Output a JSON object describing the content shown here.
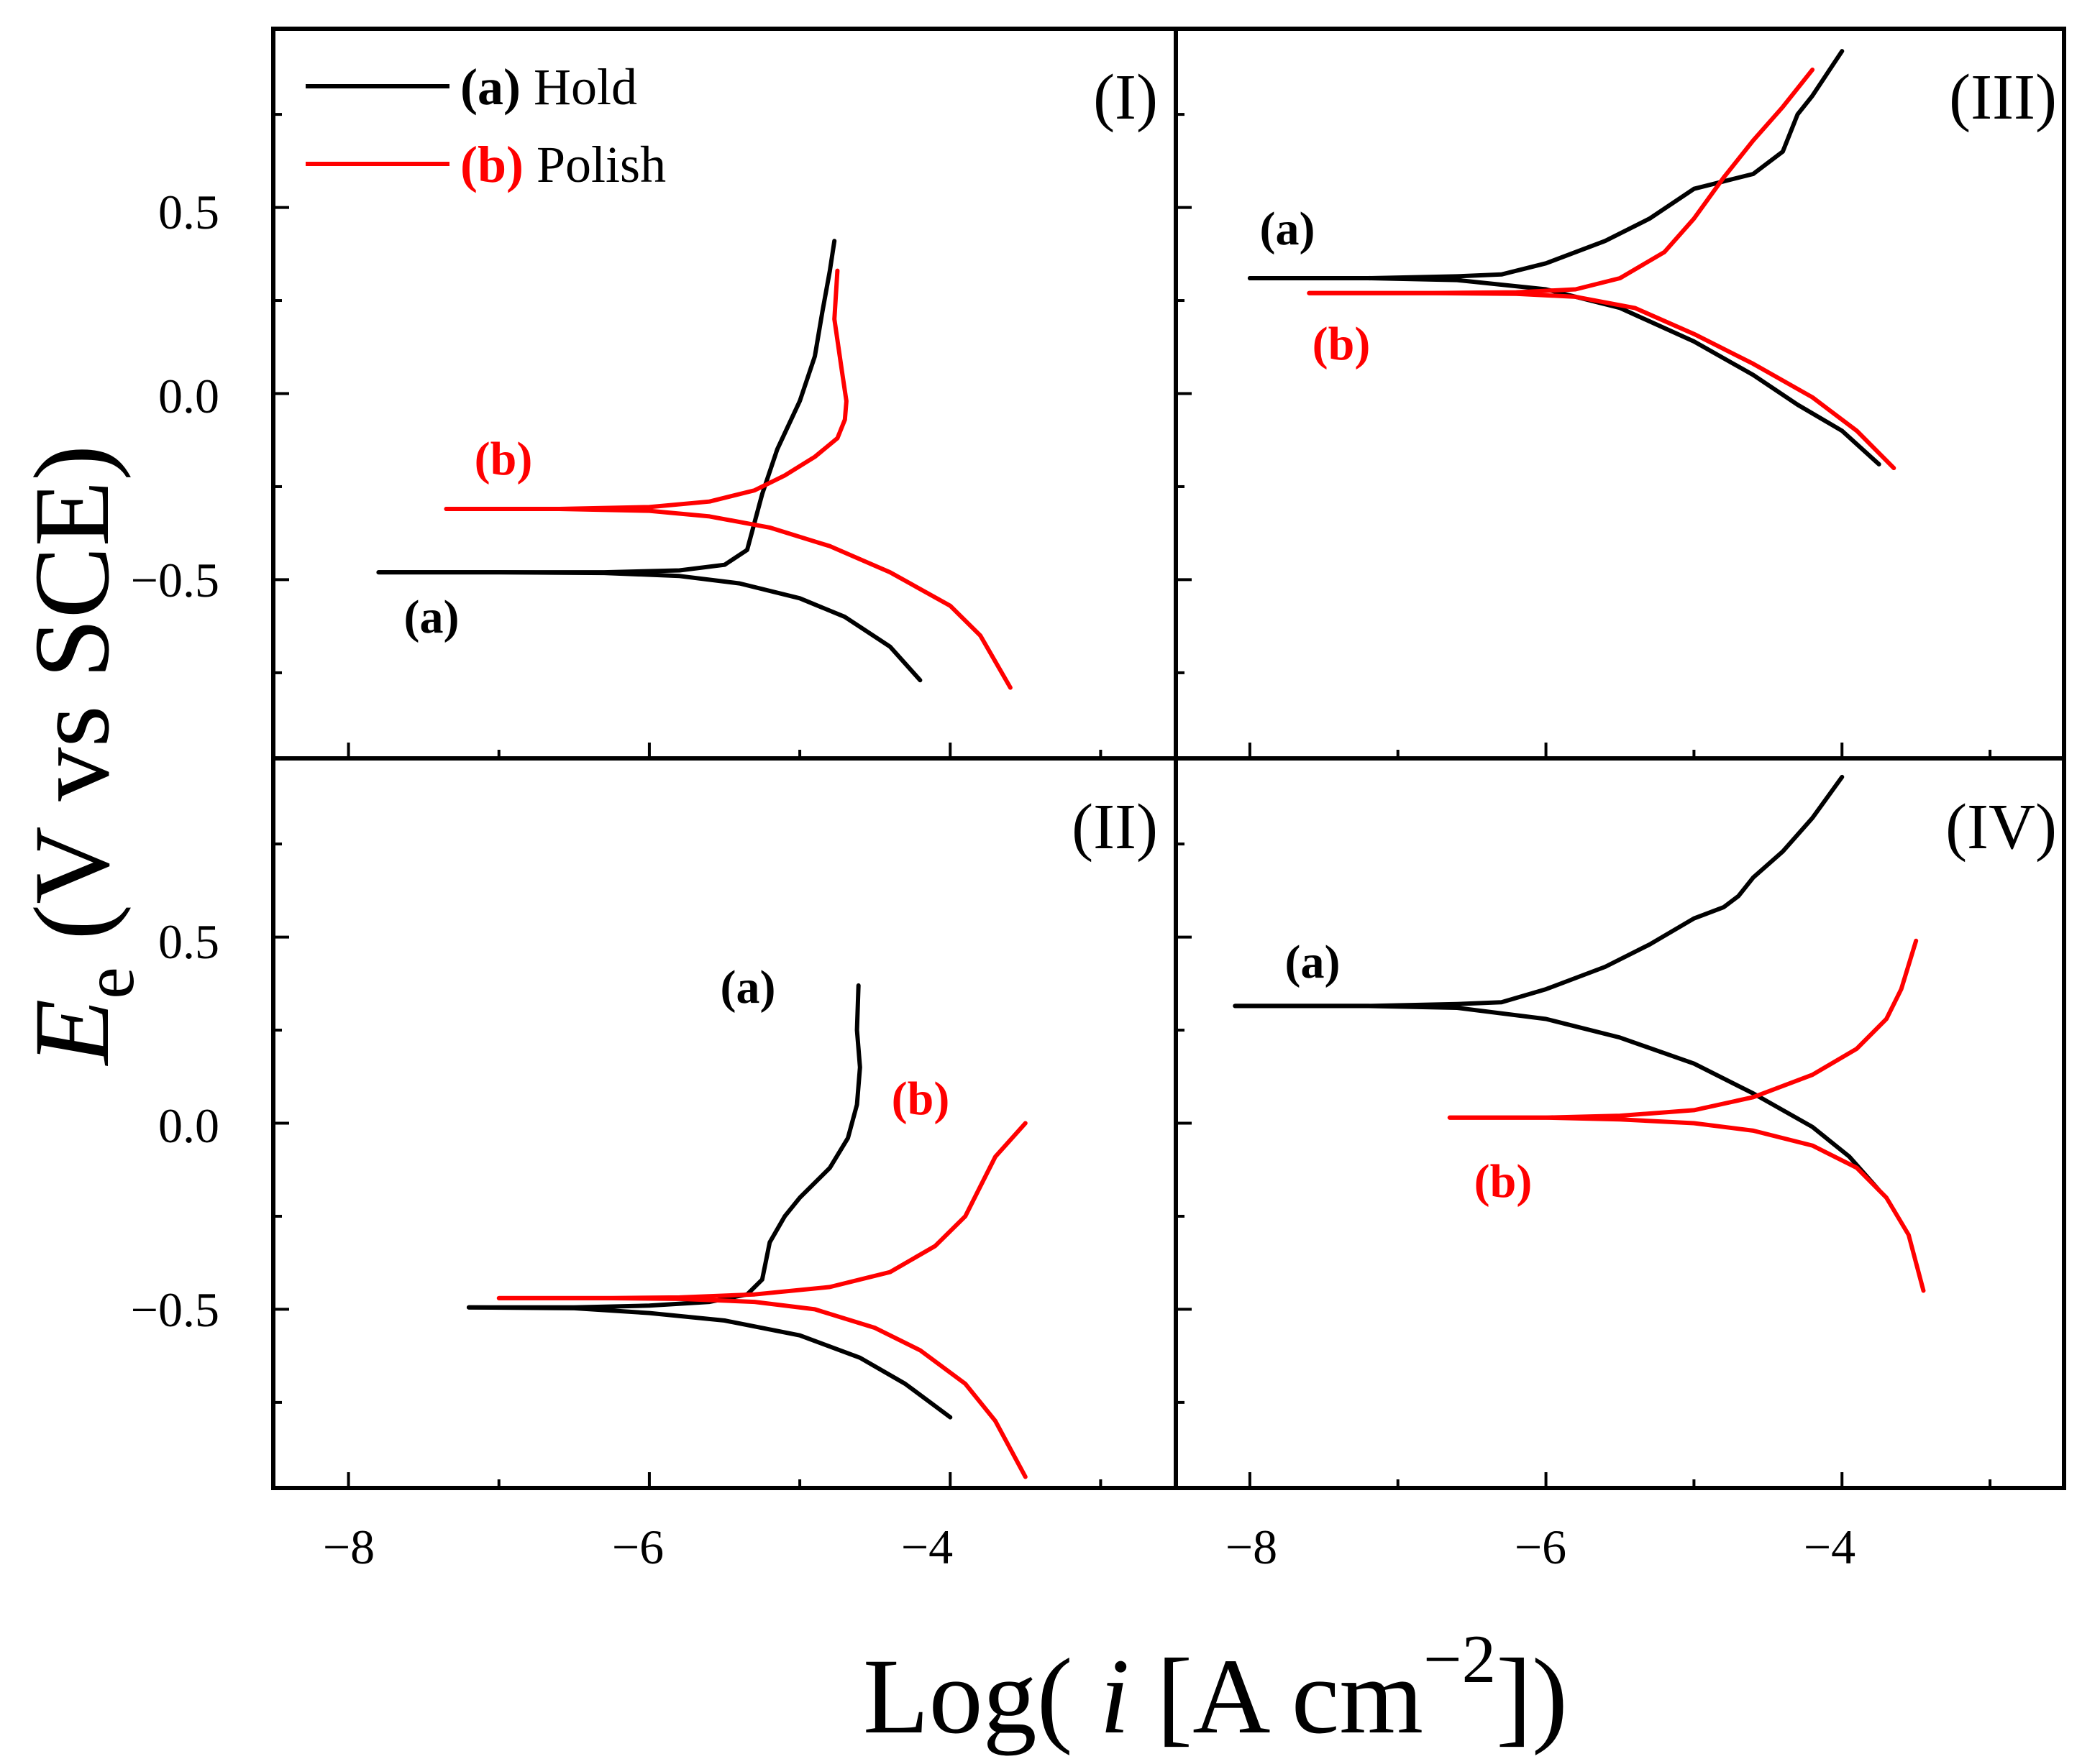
{
  "colors": {
    "hold": "#000000",
    "polish": "#ff0000",
    "axis": "#000000"
  },
  "axes": {
    "xlabel_prefix": "Log( ",
    "xlabel_var": "i",
    "xlabel_unit": " [A cm",
    "xlabel_exp": "−2",
    "xlabel_suffix": "])",
    "ylabel_var": "E",
    "ylabel_sub": "e",
    "ylabel_unit": " (V vs SCE)",
    "x_ticks": [
      "−8",
      "−6",
      "−4"
    ],
    "y_ticks": [
      "0.5",
      "0.0",
      "−0.5"
    ]
  },
  "legend": {
    "hold_tag": "(a)",
    "hold_name": "Hold",
    "polish_tag": "(b)",
    "polish_name": "Polish"
  },
  "chart_data": [
    {
      "type": "line",
      "title": "(I)",
      "xlim": [
        -8.5,
        -2.5
      ],
      "ylim": [
        -0.98,
        0.98
      ],
      "series": [
        {
          "name": "Hold",
          "label": "(a)",
          "color": "#000000",
          "x": [
            -7.8,
            -7.0,
            -6.3,
            -5.8,
            -5.5,
            -5.35,
            -5.25,
            -5.15,
            -5.0,
            -4.9,
            -4.85,
            -4.8,
            -4.77
          ],
          "y": [
            -0.48,
            -0.48,
            -0.48,
            -0.475,
            -0.46,
            -0.42,
            -0.27,
            -0.15,
            -0.02,
            0.1,
            0.22,
            0.33,
            0.41
          ]
        },
        {
          "name": "Hold",
          "label": "",
          "color": "#000000",
          "x": [
            -7.8,
            -7.0,
            -6.3,
            -5.8,
            -5.4,
            -5.0,
            -4.7,
            -4.4,
            -4.2
          ],
          "y": [
            -0.48,
            -0.48,
            -0.482,
            -0.49,
            -0.51,
            -0.55,
            -0.6,
            -0.68,
            -0.77
          ]
        },
        {
          "name": "Polish",
          "label": "(b)",
          "color": "#ff0000",
          "x": [
            -7.35,
            -6.6,
            -6.0,
            -5.6,
            -5.3,
            -5.1,
            -4.9,
            -4.75,
            -4.7,
            -4.69,
            -4.72,
            -4.77,
            -4.75
          ],
          "y": [
            -0.31,
            -0.31,
            -0.305,
            -0.29,
            -0.26,
            -0.22,
            -0.17,
            -0.12,
            -0.07,
            -0.02,
            0.06,
            0.2,
            0.33
          ]
        },
        {
          "name": "Polish",
          "label": "",
          "color": "#ff0000",
          "x": [
            -7.35,
            -6.6,
            -6.0,
            -5.6,
            -5.2,
            -4.8,
            -4.4,
            -4.0,
            -3.8,
            -3.6
          ],
          "y": [
            -0.31,
            -0.31,
            -0.315,
            -0.33,
            -0.36,
            -0.41,
            -0.48,
            -0.57,
            -0.65,
            -0.79
          ]
        }
      ]
    },
    {
      "type": "line",
      "title": "(III)",
      "xlim": [
        -8.5,
        -2.5
      ],
      "ylim": [
        -0.98,
        0.98
      ],
      "series": [
        {
          "name": "Hold",
          "label": "(a)",
          "color": "#000000",
          "x": [
            -8.0,
            -7.2,
            -6.6,
            -6.3,
            -6.0,
            -5.6,
            -5.3,
            -5.0,
            -4.8,
            -4.6,
            -4.4,
            -4.3,
            -4.2,
            -4.1,
            -4.0
          ],
          "y": [
            0.31,
            0.31,
            0.315,
            0.32,
            0.35,
            0.41,
            0.47,
            0.55,
            0.57,
            0.59,
            0.65,
            0.75,
            0.8,
            0.86,
            0.92
          ]
        },
        {
          "name": "Hold",
          "label": "",
          "color": "#000000",
          "x": [
            -8.0,
            -7.2,
            -6.6,
            -6.0,
            -5.5,
            -5.0,
            -4.6,
            -4.3,
            -4.0,
            -3.75
          ],
          "y": [
            0.31,
            0.31,
            0.305,
            0.28,
            0.23,
            0.14,
            0.05,
            -0.03,
            -0.1,
            -0.19
          ]
        },
        {
          "name": "Polish",
          "label": "(b)",
          "color": "#ff0000",
          "x": [
            -7.6,
            -6.8,
            -6.2,
            -5.8,
            -5.5,
            -5.2,
            -5.0,
            -4.8,
            -4.6,
            -4.4,
            -4.2
          ],
          "y": [
            0.27,
            0.27,
            0.272,
            0.28,
            0.31,
            0.38,
            0.47,
            0.58,
            0.68,
            0.77,
            0.87
          ]
        },
        {
          "name": "Polish",
          "label": "",
          "color": "#ff0000",
          "x": [
            -7.6,
            -6.8,
            -6.2,
            -5.8,
            -5.4,
            -5.0,
            -4.6,
            -4.2,
            -3.9,
            -3.65
          ],
          "y": [
            0.27,
            0.27,
            0.268,
            0.26,
            0.23,
            0.16,
            0.08,
            -0.01,
            -0.1,
            -0.2
          ]
        }
      ]
    },
    {
      "type": "line",
      "title": "(II)",
      "xlim": [
        -8.5,
        -2.5
      ],
      "ylim": [
        -0.98,
        0.98
      ],
      "series": [
        {
          "name": "Hold",
          "label": "(a)",
          "color": "#000000",
          "x": [
            -7.2,
            -6.5,
            -6.0,
            -5.6,
            -5.35,
            -5.25,
            -5.2,
            -5.1,
            -5.0,
            -4.8,
            -4.68,
            -4.62,
            -4.6,
            -4.62,
            -4.61
          ],
          "y": [
            -0.495,
            -0.495,
            -0.49,
            -0.48,
            -0.46,
            -0.42,
            -0.32,
            -0.25,
            -0.2,
            -0.12,
            -0.04,
            0.05,
            0.15,
            0.25,
            0.37
          ]
        },
        {
          "name": "Hold",
          "label": "",
          "color": "#000000",
          "x": [
            -7.2,
            -6.5,
            -6.0,
            -5.5,
            -5.0,
            -4.6,
            -4.3,
            -4.0
          ],
          "y": [
            -0.495,
            -0.497,
            -0.51,
            -0.53,
            -0.57,
            -0.63,
            -0.7,
            -0.79
          ]
        },
        {
          "name": "Polish",
          "label": "(b)",
          "color": "#ff0000",
          "x": [
            -7.0,
            -6.3,
            -5.8,
            -5.3,
            -4.8,
            -4.4,
            -4.1,
            -3.9,
            -3.8,
            -3.7,
            -3.5
          ],
          "y": [
            -0.47,
            -0.47,
            -0.468,
            -0.46,
            -0.44,
            -0.4,
            -0.33,
            -0.25,
            -0.17,
            -0.09,
            0.0
          ]
        },
        {
          "name": "Polish",
          "label": "",
          "color": "#ff0000",
          "x": [
            -7.0,
            -6.3,
            -5.8,
            -5.3,
            -4.9,
            -4.5,
            -4.2,
            -3.9,
            -3.7,
            -3.5
          ],
          "y": [
            -0.47,
            -0.47,
            -0.472,
            -0.48,
            -0.5,
            -0.55,
            -0.61,
            -0.7,
            -0.8,
            -0.95
          ]
        }
      ]
    },
    {
      "type": "line",
      "title": "(IV)",
      "xlim": [
        -8.5,
        -2.5
      ],
      "ylim": [
        -0.98,
        0.98
      ],
      "series": [
        {
          "name": "Hold",
          "label": "(a)",
          "color": "#000000",
          "x": [
            -8.1,
            -7.2,
            -6.6,
            -6.3,
            -6.0,
            -5.6,
            -5.3,
            -5.0,
            -4.8,
            -4.7,
            -4.6,
            -4.4,
            -4.2,
            -4.0
          ],
          "y": [
            0.315,
            0.315,
            0.32,
            0.325,
            0.36,
            0.42,
            0.48,
            0.55,
            0.58,
            0.61,
            0.66,
            0.73,
            0.82,
            0.93
          ]
        },
        {
          "name": "Hold",
          "label": "",
          "color": "#000000",
          "x": [
            -8.1,
            -7.2,
            -6.6,
            -6.0,
            -5.5,
            -5.0,
            -4.6,
            -4.2,
            -3.95,
            -3.75
          ],
          "y": [
            0.315,
            0.315,
            0.31,
            0.28,
            0.23,
            0.16,
            0.08,
            -0.01,
            -0.09,
            -0.18
          ]
        },
        {
          "name": "Polish",
          "label": "(b)",
          "color": "#ff0000",
          "x": [
            -6.65,
            -6.0,
            -5.5,
            -5.0,
            -4.6,
            -4.2,
            -3.9,
            -3.7,
            -3.6,
            -3.5
          ],
          "y": [
            0.015,
            0.015,
            0.02,
            0.035,
            0.07,
            0.13,
            0.2,
            0.28,
            0.36,
            0.49
          ]
        },
        {
          "name": "Polish",
          "label": "",
          "color": "#ff0000",
          "x": [
            -6.65,
            -6.0,
            -5.5,
            -5.0,
            -4.6,
            -4.2,
            -3.9,
            -3.7,
            -3.55,
            -3.45
          ],
          "y": [
            0.015,
            0.015,
            0.01,
            0.0,
            -0.02,
            -0.06,
            -0.12,
            -0.2,
            -0.3,
            -0.45
          ]
        }
      ]
    }
  ]
}
